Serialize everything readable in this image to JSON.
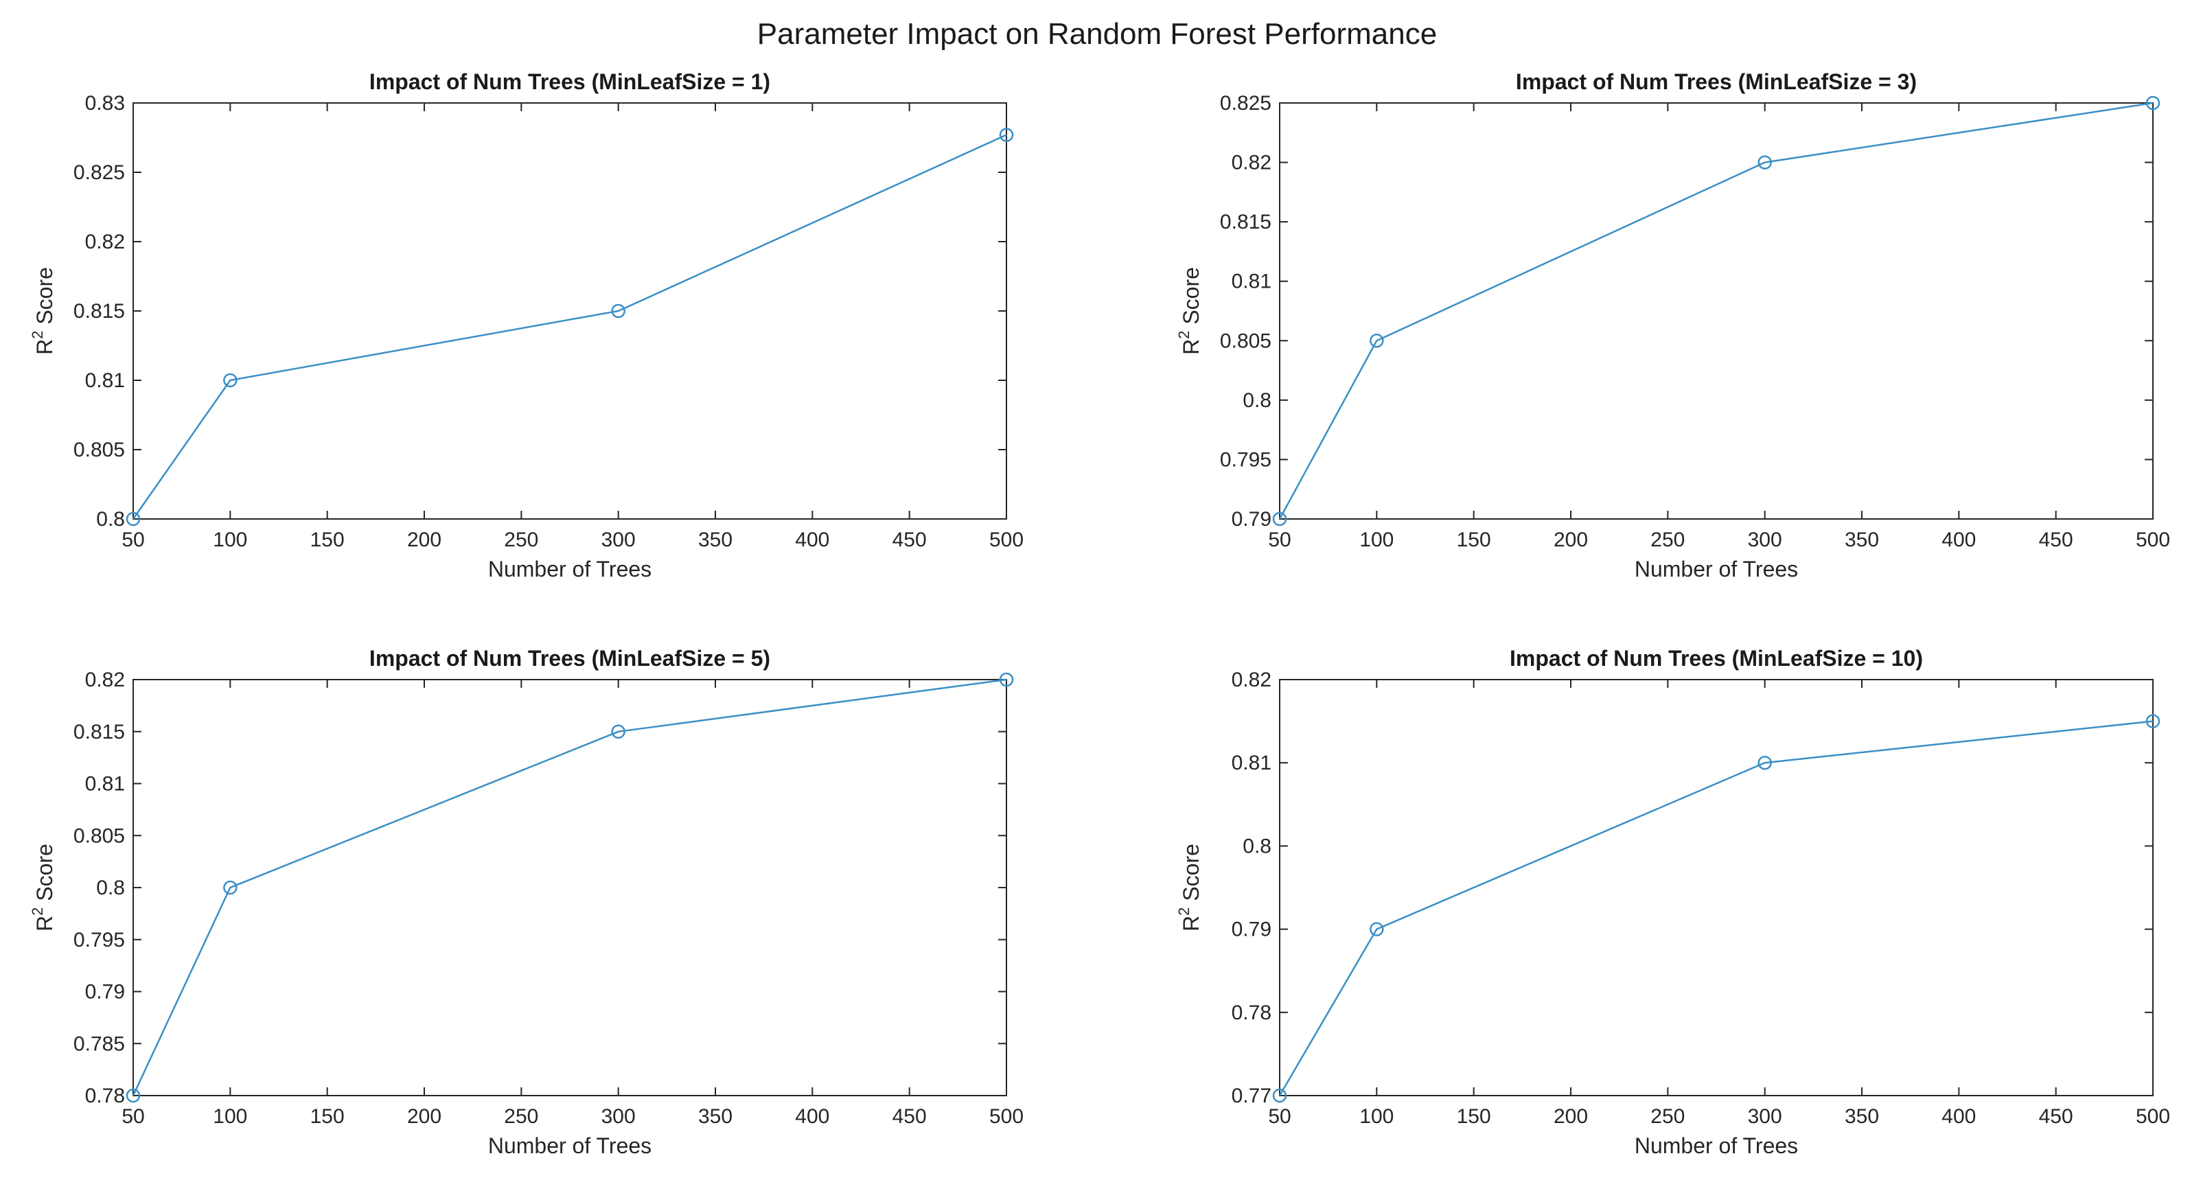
{
  "figure": {
    "title": "Parameter Impact on Random Forest Performance"
  },
  "colors": {
    "series": "#3b8fc6",
    "axis": "#262626",
    "text": "#1a1a1a"
  },
  "chart_data": [
    {
      "type": "line",
      "title": "Impact of Num Trees (MinLeafSize = 1)",
      "xlabel": "Number of Trees",
      "ylabel_base": "R",
      "ylabel_sup": "2",
      "ylabel_rest": " Score",
      "xlim": [
        50,
        500
      ],
      "ylim": [
        0.8,
        0.83
      ],
      "xticks": [
        50,
        100,
        150,
        200,
        250,
        300,
        350,
        400,
        450,
        500
      ],
      "xtick_labels": [
        "50",
        "100",
        "150",
        "200",
        "250",
        "300",
        "350",
        "400",
        "450",
        "500"
      ],
      "yticks": [
        0.8,
        0.805,
        0.81,
        0.815,
        0.82,
        0.825,
        0.83
      ],
      "ytick_labels": [
        "0.8",
        "0.805",
        "0.81",
        "0.815",
        "0.82",
        "0.825",
        "0.83"
      ],
      "x": [
        50,
        100,
        300,
        500
      ],
      "y": [
        0.8,
        0.81,
        0.815,
        0.8277
      ],
      "marker": "circle",
      "grid": false
    },
    {
      "type": "line",
      "title": "Impact of Num Trees (MinLeafSize = 3)",
      "xlabel": "Number of Trees",
      "ylabel_base": "R",
      "ylabel_sup": "2",
      "ylabel_rest": " Score",
      "xlim": [
        50,
        500
      ],
      "ylim": [
        0.79,
        0.825
      ],
      "xticks": [
        50,
        100,
        150,
        200,
        250,
        300,
        350,
        400,
        450,
        500
      ],
      "xtick_labels": [
        "50",
        "100",
        "150",
        "200",
        "250",
        "300",
        "350",
        "400",
        "450",
        "500"
      ],
      "yticks": [
        0.79,
        0.795,
        0.8,
        0.805,
        0.81,
        0.815,
        0.82,
        0.825
      ],
      "ytick_labels": [
        "0.79",
        "0.795",
        "0.8",
        "0.805",
        "0.81",
        "0.815",
        "0.82",
        "0.825"
      ],
      "x": [
        50,
        100,
        300,
        500
      ],
      "y": [
        0.79,
        0.805,
        0.82,
        0.825
      ],
      "marker": "circle",
      "grid": false
    },
    {
      "type": "line",
      "title": "Impact of Num Trees (MinLeafSize = 5)",
      "xlabel": "Number of Trees",
      "ylabel_base": "R",
      "ylabel_sup": "2",
      "ylabel_rest": " Score",
      "xlim": [
        50,
        500
      ],
      "ylim": [
        0.78,
        0.82
      ],
      "xticks": [
        50,
        100,
        150,
        200,
        250,
        300,
        350,
        400,
        450,
        500
      ],
      "xtick_labels": [
        "50",
        "100",
        "150",
        "200",
        "250",
        "300",
        "350",
        "400",
        "450",
        "500"
      ],
      "yticks": [
        0.78,
        0.785,
        0.79,
        0.795,
        0.8,
        0.805,
        0.81,
        0.815,
        0.82
      ],
      "ytick_labels": [
        "0.78",
        "0.785",
        "0.79",
        "0.795",
        "0.8",
        "0.805",
        "0.81",
        "0.815",
        "0.82"
      ],
      "x": [
        50,
        100,
        300,
        500
      ],
      "y": [
        0.78,
        0.8,
        0.815,
        0.82
      ],
      "marker": "circle",
      "grid": false
    },
    {
      "type": "line",
      "title": "Impact of Num Trees (MinLeafSize = 10)",
      "xlabel": "Number of Trees",
      "ylabel_base": "R",
      "ylabel_sup": "2",
      "ylabel_rest": " Score",
      "xlim": [
        50,
        500
      ],
      "ylim": [
        0.77,
        0.82
      ],
      "xticks": [
        50,
        100,
        150,
        200,
        250,
        300,
        350,
        400,
        450,
        500
      ],
      "xtick_labels": [
        "50",
        "100",
        "150",
        "200",
        "250",
        "300",
        "350",
        "400",
        "450",
        "500"
      ],
      "yticks": [
        0.77,
        0.78,
        0.79,
        0.8,
        0.81,
        0.82
      ],
      "ytick_labels": [
        "0.77",
        "0.78",
        "0.79",
        "0.8",
        "0.81",
        "0.82"
      ],
      "x": [
        50,
        100,
        300,
        500
      ],
      "y": [
        0.77,
        0.79,
        0.81,
        0.815
      ],
      "marker": "circle",
      "grid": false
    }
  ]
}
